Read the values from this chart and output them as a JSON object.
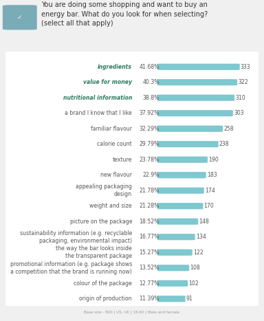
{
  "title_line1": "You are doing some shopping and want to buy an",
  "title_line2": "energy bar. What do you look for when selecting?",
  "title_line3": "(select all that apply)",
  "categories": [
    "ingredients",
    "value for money",
    "nutritional information",
    "a brand I know that I like",
    "familiar flavour",
    "calorie count",
    "texture",
    "new flavour",
    "appealing packaging\ndesign",
    "weight and size",
    "picture on the package",
    "sustainability information (e.g. recyclable\npackaging, environmental impact)",
    "the way the bar looks inside\nthe transparent package",
    "promotional information (e.g. package shows\na competition that the brand is running now)",
    "colour of the package",
    "origin of production"
  ],
  "percentages": [
    41.68,
    40.3,
    38.8,
    37.92,
    32.29,
    29.79,
    23.78,
    22.9,
    21.78,
    21.28,
    18.52,
    16.77,
    15.27,
    13.52,
    12.77,
    11.39
  ],
  "pct_labels": [
    "41.68%",
    "40.3%",
    "38.8%",
    "37.92%",
    "32.29%",
    "29.79%",
    "23.78%",
    "22.9%",
    "21.78%",
    "21.28%",
    "18.52%",
    "16.77%",
    "15.27%",
    "13.52%",
    "12.77%",
    "11.39%"
  ],
  "counts": [
    333,
    322,
    310,
    303,
    258,
    238,
    190,
    183,
    174,
    170,
    148,
    134,
    122,
    108,
    102,
    91
  ],
  "bold_indices": [
    0,
    1,
    2
  ],
  "bar_color": "#7ec8cf",
  "bold_color": "#2d7d5f",
  "normal_color": "#555555",
  "bg_color": "#f0f0f0",
  "panel_color": "#ffffff",
  "footnote": "Base size - 800 | US, UK | 18-60 | Male and female",
  "icon_bg": "#7aacb8"
}
